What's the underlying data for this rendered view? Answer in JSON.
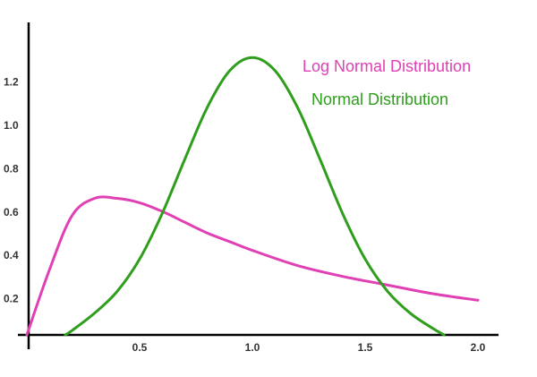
{
  "chart_data": {
    "type": "line",
    "title": "",
    "xlabel": "",
    "ylabel": "",
    "xlim": [
      0,
      2.1
    ],
    "ylim": [
      0,
      1.4
    ],
    "grid": false,
    "legend_placement": "top-right",
    "x_ticks": [
      "0.5",
      "1.0",
      "1.5",
      "2.0"
    ],
    "x_tick_values": [
      0.5,
      1.0,
      1.5,
      2.0
    ],
    "y_ticks": [
      "0.2",
      "0.4",
      "0.6",
      "0.8",
      "1.0",
      "1.2"
    ],
    "y_tick_values": [
      0.2,
      0.4,
      0.6,
      0.8,
      1.0,
      1.2
    ],
    "series": [
      {
        "name": "Log Normal Distribution",
        "color": "#e040b4",
        "x": [
          0,
          0.1,
          0.2,
          0.3,
          0.4,
          0.5,
          0.6,
          0.7,
          0.8,
          0.9,
          1.0,
          1.2,
          1.4,
          1.6,
          1.8,
          2.0
        ],
        "y": [
          0,
          0.3,
          0.55,
          0.63,
          0.63,
          0.61,
          0.57,
          0.52,
          0.47,
          0.43,
          0.39,
          0.32,
          0.27,
          0.23,
          0.19,
          0.16
        ]
      },
      {
        "name": "Normal Distribution",
        "color": "#2e9e1c",
        "x": [
          0.17,
          0.2,
          0.3,
          0.4,
          0.5,
          0.6,
          0.7,
          0.8,
          0.9,
          1.0,
          1.1,
          1.2,
          1.3,
          1.4,
          1.5,
          1.6,
          1.7,
          1.8,
          1.85
        ],
        "y": [
          0,
          0.02,
          0.1,
          0.2,
          0.35,
          0.56,
          0.81,
          1.05,
          1.22,
          1.28,
          1.22,
          1.05,
          0.81,
          0.56,
          0.35,
          0.2,
          0.1,
          0.03,
          0
        ]
      }
    ]
  }
}
